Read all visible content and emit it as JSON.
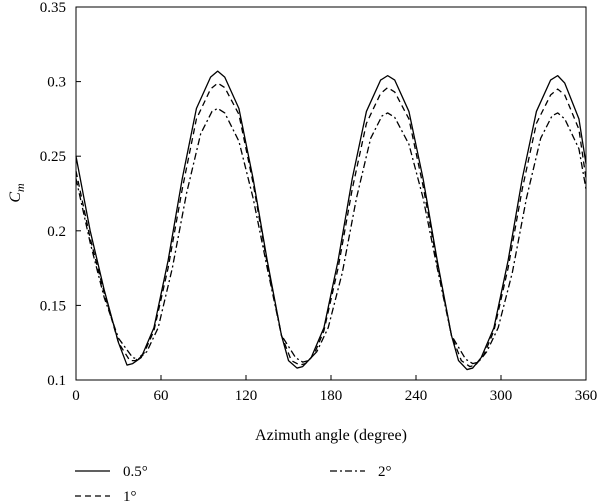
{
  "chart_data": {
    "type": "line",
    "xlabel": "Azimuth angle (degree)",
    "ylabel_main": "C",
    "ylabel_sub": "m",
    "xlim": [
      0,
      360
    ],
    "ylim": [
      0.1,
      0.35
    ],
    "xticks": [
      0,
      60,
      120,
      180,
      240,
      300,
      360
    ],
    "yticks": [
      0.1,
      0.15,
      0.2,
      0.25,
      0.3,
      0.35
    ],
    "xtick_labels": [
      "0",
      "60",
      "120",
      "180",
      "240",
      "300",
      "360"
    ],
    "ytick_labels": [
      "0.1",
      "0.15",
      "0.2",
      "0.25",
      "0.3",
      "0.35"
    ],
    "grid": false,
    "legend_position": "bottom",
    "series": [
      {
        "name": "0.5°",
        "style": "solid",
        "x": [
          0,
          10,
          20,
          30,
          36,
          40,
          46,
          55,
          65,
          75,
          85,
          95,
          100,
          105,
          115,
          125,
          135,
          145,
          150,
          156,
          160,
          166,
          175,
          185,
          195,
          205,
          215,
          220,
          225,
          235,
          245,
          255,
          265,
          270,
          276,
          280,
          286,
          295,
          305,
          315,
          325,
          335,
          340,
          345,
          355,
          360
        ],
        "y": [
          0.25,
          0.2,
          0.16,
          0.125,
          0.11,
          0.111,
          0.115,
          0.135,
          0.18,
          0.235,
          0.282,
          0.303,
          0.307,
          0.303,
          0.282,
          0.235,
          0.18,
          0.13,
          0.113,
          0.108,
          0.109,
          0.115,
          0.135,
          0.18,
          0.235,
          0.28,
          0.301,
          0.304,
          0.301,
          0.28,
          0.235,
          0.18,
          0.13,
          0.113,
          0.107,
          0.108,
          0.115,
          0.135,
          0.18,
          0.235,
          0.28,
          0.301,
          0.304,
          0.299,
          0.275,
          0.245
        ]
      },
      {
        "name": "1°",
        "style": "dashed",
        "x": [
          0,
          10,
          20,
          30,
          38,
          42,
          48,
          55,
          65,
          75,
          85,
          95,
          100,
          105,
          115,
          125,
          135,
          145,
          152,
          158,
          162,
          168,
          175,
          185,
          195,
          205,
          215,
          220,
          225,
          235,
          245,
          255,
          265,
          272,
          278,
          282,
          288,
          295,
          305,
          315,
          325,
          335,
          340,
          345,
          355,
          360
        ],
        "y": [
          0.24,
          0.195,
          0.158,
          0.125,
          0.113,
          0.113,
          0.118,
          0.133,
          0.175,
          0.228,
          0.275,
          0.295,
          0.299,
          0.296,
          0.278,
          0.232,
          0.178,
          0.13,
          0.113,
          0.11,
          0.111,
          0.117,
          0.133,
          0.175,
          0.228,
          0.272,
          0.292,
          0.296,
          0.293,
          0.275,
          0.23,
          0.178,
          0.13,
          0.113,
          0.109,
          0.11,
          0.117,
          0.133,
          0.175,
          0.228,
          0.272,
          0.291,
          0.295,
          0.291,
          0.268,
          0.235
        ]
      },
      {
        "name": "2°",
        "style": "dashdot",
        "x": [
          0,
          10,
          20,
          30,
          40,
          44,
          50,
          58,
          68,
          78,
          88,
          96,
          100,
          105,
          115,
          125,
          135,
          145,
          155,
          160,
          164,
          170,
          178,
          188,
          198,
          208,
          216,
          220,
          225,
          235,
          245,
          255,
          265,
          275,
          280,
          284,
          290,
          298,
          308,
          318,
          328,
          336,
          340,
          345,
          355,
          360
        ],
        "y": [
          0.235,
          0.192,
          0.155,
          0.128,
          0.115,
          0.114,
          0.119,
          0.135,
          0.175,
          0.225,
          0.265,
          0.28,
          0.282,
          0.279,
          0.26,
          0.222,
          0.175,
          0.13,
          0.115,
          0.112,
          0.113,
          0.119,
          0.135,
          0.172,
          0.222,
          0.262,
          0.277,
          0.279,
          0.276,
          0.258,
          0.222,
          0.175,
          0.13,
          0.114,
          0.111,
          0.112,
          0.119,
          0.135,
          0.172,
          0.222,
          0.262,
          0.277,
          0.279,
          0.275,
          0.255,
          0.228
        ]
      }
    ]
  }
}
